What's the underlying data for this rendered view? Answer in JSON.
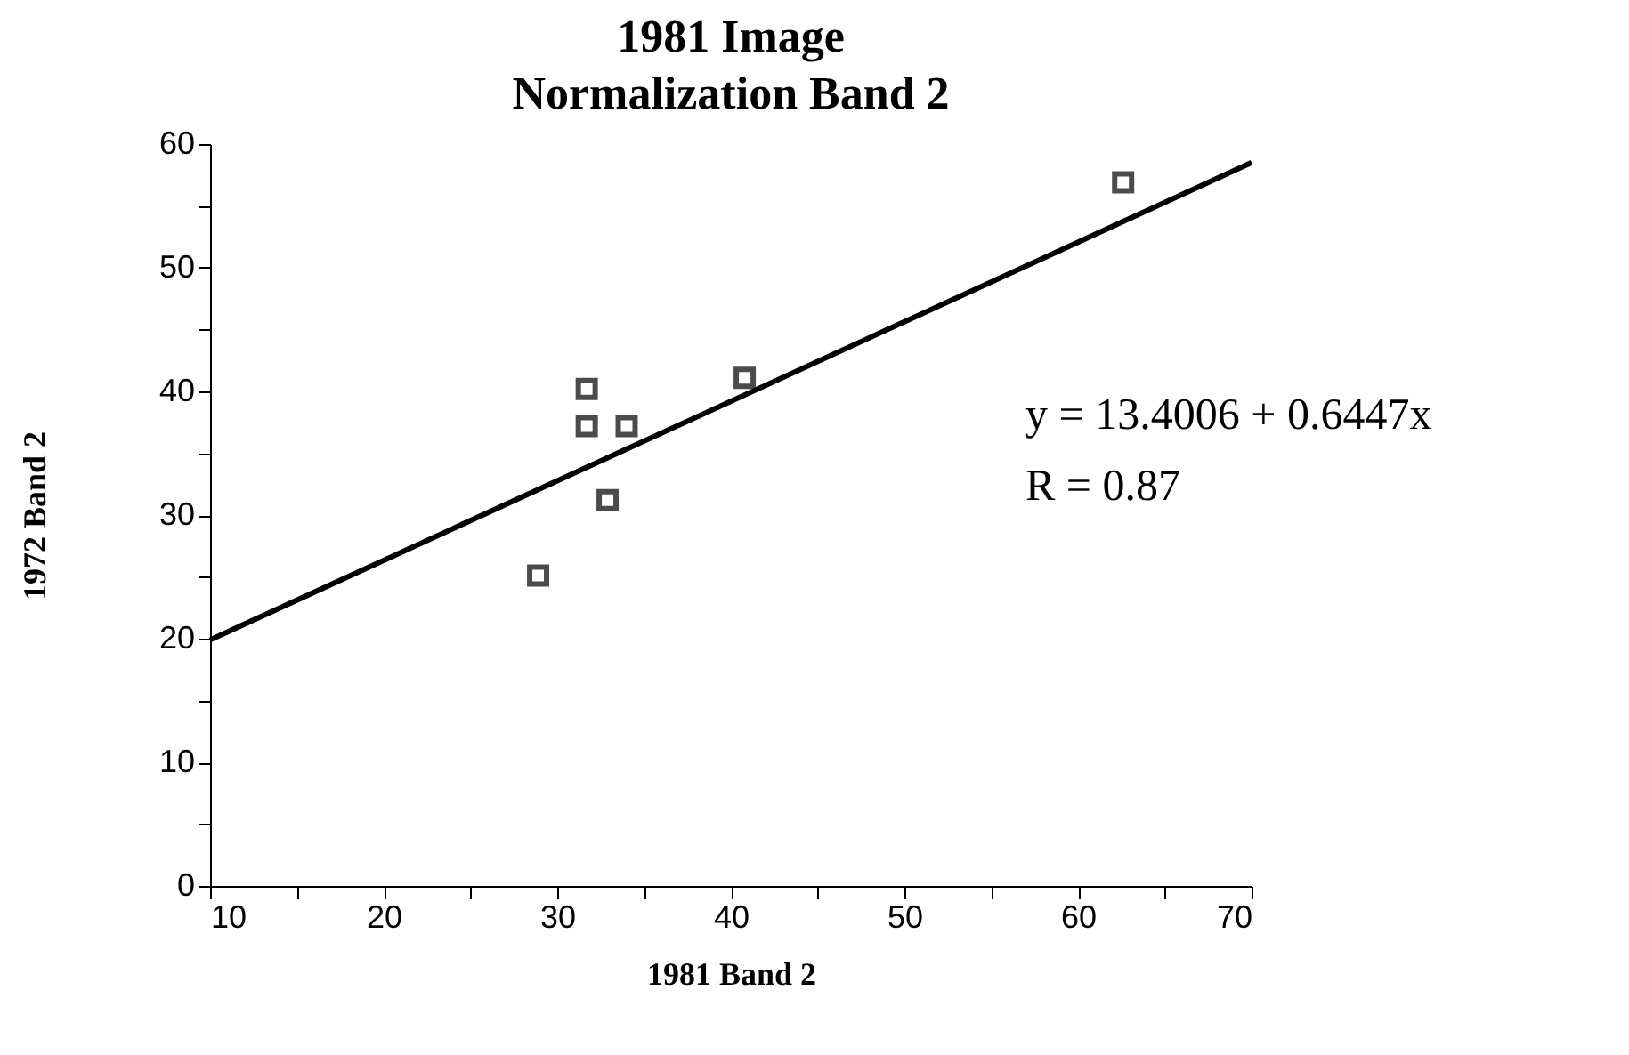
{
  "chart_data": {
    "type": "scatter",
    "title": "1981 Image",
    "subtitle": "Normalization Band 2",
    "xlabel": "1981 Band 2",
    "ylabel": "1972 Band 2",
    "series": [
      {
        "color": "#000000",
        "marker": "square",
        "x": [
          28.9,
          31.7,
          31.7,
          34.0,
          32.9,
          40.8,
          62.6
        ],
        "values": [
          25.1,
          40.2,
          37.2,
          37.2,
          31.2,
          41.1,
          56.9
        ]
      },
      {
        "type": "line",
        "color": "#000000",
        "x": [
          10,
          70
        ],
        "values": [
          19.9,
          58.5
        ]
      }
    ],
    "xlim": [
      10,
      70
    ],
    "ylim": [
      0,
      60
    ],
    "xticks": [
      10,
      {
        "value": 15,
        "label": null
      },
      20,
      {
        "value": 25,
        "label": null
      },
      30,
      {
        "value": 35,
        "label": null
      },
      40,
      {
        "value": 45,
        "label": null
      },
      50,
      {
        "value": 55,
        "label": null
      },
      60,
      {
        "value": 65,
        "label": null
      },
      70
    ],
    "yticks": [
      0,
      {
        "value": 5,
        "label": null
      },
      10,
      {
        "value": 15,
        "label": null
      },
      20,
      {
        "value": 25,
        "label": null
      },
      30,
      {
        "value": 35,
        "label": null
      },
      40,
      {
        "value": 45,
        "label": null
      },
      50,
      {
        "value": 55,
        "label": null
      },
      60
    ],
    "annotations": [
      "y = 13.4006 + 0.6447x",
      "R = 0.87"
    ],
    "grid": false
  }
}
